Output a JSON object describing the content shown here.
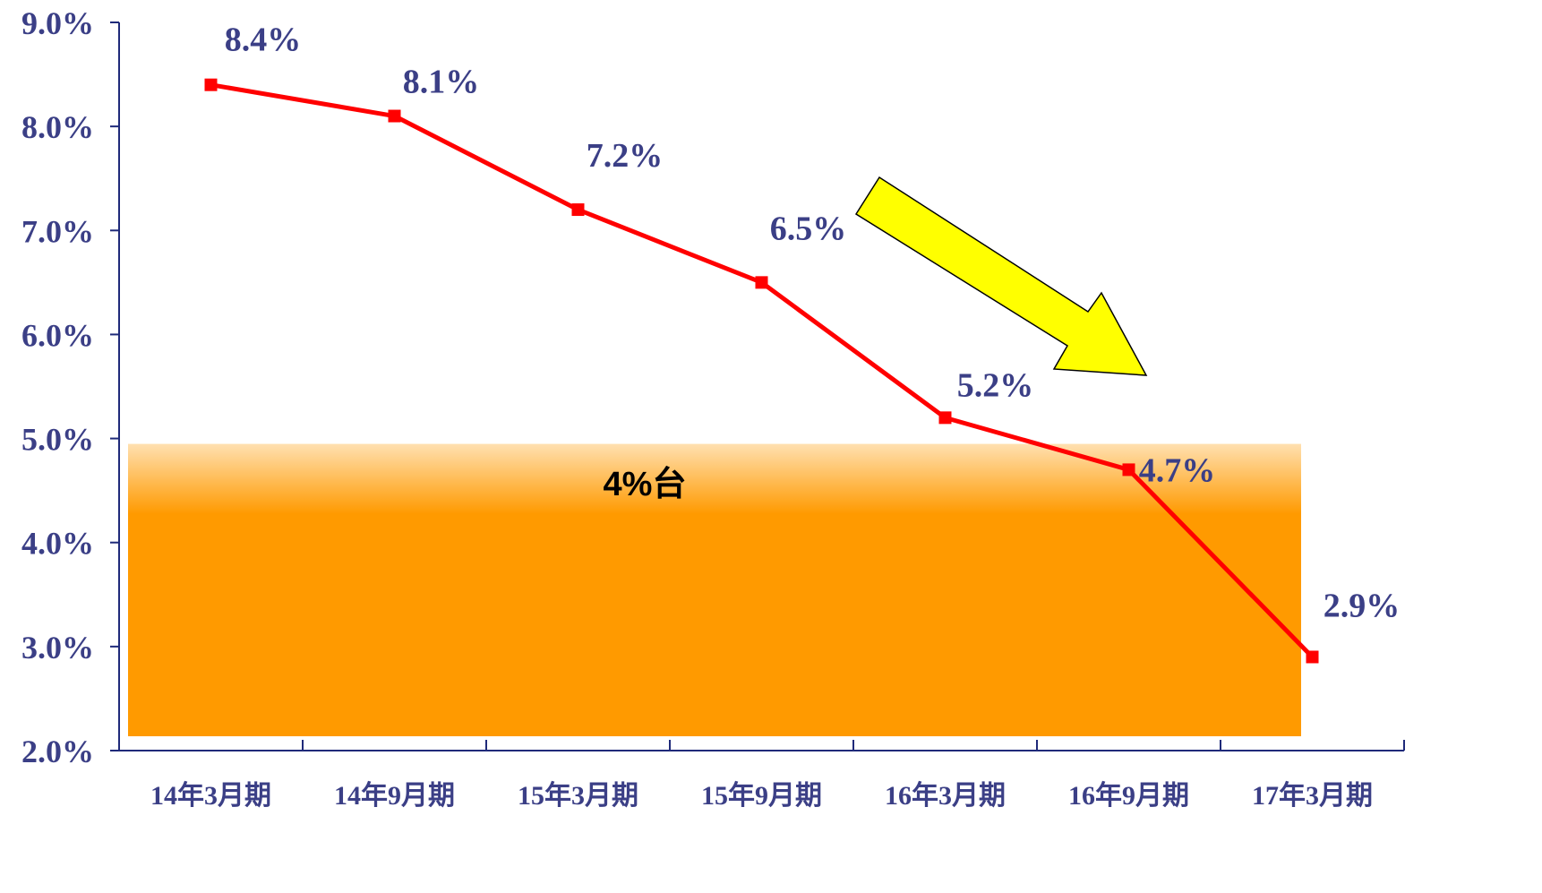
{
  "colors": {
    "axis": "#1f2a7a",
    "text": "#3b3f86",
    "line": "#ff0000",
    "band": "#ff9a00",
    "band_top": "#ffe0b0",
    "arrow_fill": "#ffff00",
    "arrow_stroke": "#000000"
  },
  "band_label": "4%台",
  "chart_data": {
    "type": "line",
    "title": "",
    "xlabel": "",
    "ylabel": "",
    "categories": [
      "14年3月期",
      "14年9月期",
      "15年3月期",
      "15年9月期",
      "16年3月期",
      "16年9月期",
      "17年3月期"
    ],
    "series": [
      {
        "values": [
          8.4,
          8.1,
          7.2,
          6.5,
          5.2,
          4.7,
          2.9
        ],
        "data_labels": [
          "8.4%",
          "8.1%",
          "7.2%",
          "6.5%",
          "5.2%",
          "4.7%",
          "2.9%"
        ]
      }
    ],
    "ylim": [
      2.0,
      9.0
    ],
    "yticks": [
      2.0,
      3.0,
      4.0,
      5.0,
      6.0,
      7.0,
      8.0,
      9.0
    ],
    "ytick_labels": [
      "2.0%",
      "3.0%",
      "4.0%",
      "5.0%",
      "6.0%",
      "7.0%",
      "8.0%",
      "9.0%"
    ],
    "grid": false,
    "legend": "none",
    "highlight_band": {
      "from": 2.0,
      "to": 5.0
    },
    "trend_arrow": "down-right"
  }
}
